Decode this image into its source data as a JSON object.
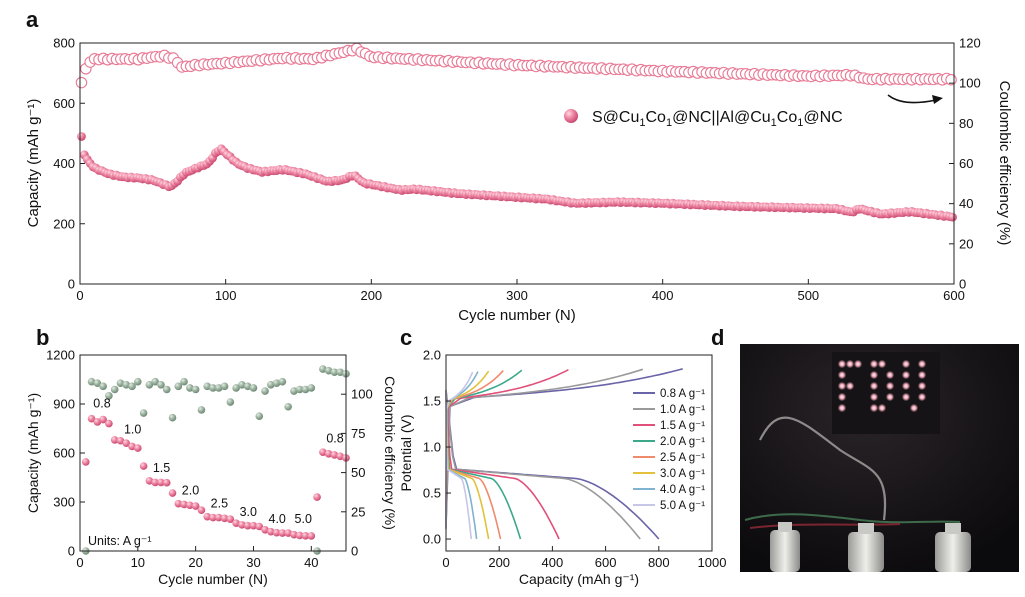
{
  "panel_labels": [
    "a",
    "b",
    "c",
    "d"
  ],
  "chart_data": [
    {
      "panel": "a",
      "type": "scatter",
      "xlabel": "Cycle number (N)",
      "ylabel": "Capacity (mAh g⁻¹)",
      "y2label": "Coulombic efficiency (%)",
      "xlim": [
        0,
        600
      ],
      "ylim": [
        0,
        800
      ],
      "y2lim": [
        0,
        120
      ],
      "xticks": [
        "0",
        "100",
        "200",
        "300",
        "400",
        "500",
        "600"
      ],
      "yticks": [
        "0",
        "200",
        "400",
        "600",
        "800"
      ],
      "y2ticks": [
        "0",
        "20",
        "40",
        "60",
        "80",
        "100",
        "120"
      ],
      "legend": {
        "label": "S@Cu1Co1@NC||Al@Cu1Co1@NC",
        "label_parts": [
          "S@Cu",
          "1",
          "Co",
          "1",
          "@NC||Al@Cu",
          "1",
          "Co",
          "1",
          "@NC"
        ],
        "placement": "center-right"
      },
      "colors": {
        "capacity": "#e87a96",
        "efficiency_edge": "#e87a96",
        "efficiency_fill": "#ffffff"
      },
      "capacity_anchors": [
        [
          1,
          488
        ],
        [
          3,
          430
        ],
        [
          6,
          405
        ],
        [
          10,
          385
        ],
        [
          20,
          365
        ],
        [
          30,
          355
        ],
        [
          40,
          352
        ],
        [
          50,
          345
        ],
        [
          58,
          330
        ],
        [
          62,
          322
        ],
        [
          66,
          338
        ],
        [
          72,
          368
        ],
        [
          80,
          385
        ],
        [
          88,
          400
        ],
        [
          94,
          440
        ],
        [
          97,
          448
        ],
        [
          101,
          430
        ],
        [
          108,
          400
        ],
        [
          115,
          385
        ],
        [
          125,
          372
        ],
        [
          140,
          380
        ],
        [
          155,
          365
        ],
        [
          170,
          340
        ],
        [
          180,
          345
        ],
        [
          188,
          362
        ],
        [
          195,
          335
        ],
        [
          220,
          312
        ],
        [
          230,
          315
        ],
        [
          260,
          300
        ],
        [
          300,
          288
        ],
        [
          320,
          282
        ],
        [
          340,
          268
        ],
        [
          370,
          272
        ],
        [
          400,
          268
        ],
        [
          430,
          262
        ],
        [
          450,
          258
        ],
        [
          500,
          252
        ],
        [
          520,
          250
        ],
        [
          530,
          238
        ],
        [
          535,
          250
        ],
        [
          550,
          232
        ],
        [
          570,
          240
        ],
        [
          600,
          222
        ]
      ],
      "efficiency_anchors": [
        [
          1,
          100
        ],
        [
          3,
          106
        ],
        [
          6,
          110
        ],
        [
          10,
          112
        ],
        [
          40,
          112
        ],
        [
          50,
          113
        ],
        [
          58,
          113.5
        ],
        [
          65,
          112
        ],
        [
          70,
          108
        ],
        [
          80,
          109
        ],
        [
          100,
          110
        ],
        [
          140,
          112.5
        ],
        [
          160,
          112
        ],
        [
          190,
          117
        ],
        [
          200,
          113
        ],
        [
          300,
          109
        ],
        [
          400,
          106
        ],
        [
          500,
          103.5
        ],
        [
          530,
          104
        ],
        [
          540,
          102
        ],
        [
          600,
          102
        ]
      ],
      "annotation": {
        "arrow": "points to right axis"
      }
    },
    {
      "panel": "b",
      "type": "scatter",
      "xlabel": "Cycle number (N)",
      "ylabel": "Capacity (mAh g⁻¹)",
      "y2label": "Coulombic efficiency (%)",
      "xlim": [
        0,
        46
      ],
      "ylim": [
        0,
        1200
      ],
      "y2lim": [
        0,
        125
      ],
      "xticks": [
        "0",
        "10",
        "20",
        "30",
        "40"
      ],
      "yticks": [
        "0",
        "300",
        "600",
        "900",
        "1200"
      ],
      "y2ticks": [
        "0",
        "25",
        "50",
        "75",
        "100"
      ],
      "capacity": [
        [
          1,
          545
        ],
        [
          2,
          810
        ],
        [
          3,
          790
        ],
        [
          4,
          805
        ],
        [
          5,
          780
        ],
        [
          6,
          680
        ],
        [
          7,
          675
        ],
        [
          8,
          660
        ],
        [
          9,
          640
        ],
        [
          10,
          630
        ],
        [
          11,
          520
        ],
        [
          12,
          430
        ],
        [
          13,
          420
        ],
        [
          14,
          420
        ],
        [
          15,
          418
        ],
        [
          16,
          355
        ],
        [
          17,
          290
        ],
        [
          18,
          285
        ],
        [
          19,
          280
        ],
        [
          20,
          275
        ],
        [
          21,
          250
        ],
        [
          22,
          210
        ],
        [
          23,
          205
        ],
        [
          24,
          205
        ],
        [
          25,
          200
        ],
        [
          26,
          195
        ],
        [
          27,
          170
        ],
        [
          28,
          160
        ],
        [
          29,
          155
        ],
        [
          30,
          155
        ],
        [
          31,
          150
        ],
        [
          32,
          130
        ],
        [
          33,
          118
        ],
        [
          34,
          112
        ],
        [
          35,
          110
        ],
        [
          36,
          110
        ],
        [
          37,
          100
        ],
        [
          38,
          95
        ],
        [
          39,
          93
        ],
        [
          40,
          92
        ],
        [
          41,
          330
        ],
        [
          42,
          605
        ],
        [
          43,
          595
        ],
        [
          44,
          588
        ],
        [
          45,
          580
        ],
        [
          46,
          570
        ]
      ],
      "efficiency": [
        [
          1,
          0
        ],
        [
          2,
          108
        ],
        [
          3,
          107
        ],
        [
          4,
          105
        ],
        [
          5,
          99
        ],
        [
          6,
          103
        ],
        [
          7,
          107
        ],
        [
          8,
          106
        ],
        [
          9,
          105
        ],
        [
          10,
          108
        ],
        [
          11,
          88
        ],
        [
          12,
          106
        ],
        [
          13,
          108
        ],
        [
          14,
          106
        ],
        [
          15,
          103
        ],
        [
          16,
          85
        ],
        [
          17,
          105
        ],
        [
          18,
          108
        ],
        [
          19,
          104
        ],
        [
          20,
          103
        ],
        [
          21,
          90
        ],
        [
          22,
          105
        ],
        [
          23,
          104
        ],
        [
          24,
          104
        ],
        [
          25,
          105
        ],
        [
          26,
          95
        ],
        [
          27,
          104
        ],
        [
          28,
          106
        ],
        [
          29,
          105
        ],
        [
          30,
          104
        ],
        [
          31,
          86
        ],
        [
          32,
          102
        ],
        [
          33,
          106
        ],
        [
          34,
          107
        ],
        [
          35,
          108
        ],
        [
          36,
          92
        ],
        [
          37,
          102
        ],
        [
          38,
          103
        ],
        [
          39,
          103
        ],
        [
          40,
          104
        ],
        [
          41,
          0
        ],
        [
          42,
          116
        ],
        [
          43,
          115
        ],
        [
          44,
          114
        ],
        [
          45,
          114
        ],
        [
          46,
          113
        ]
      ],
      "colors": {
        "capacity": "#e87a96",
        "efficiency": "#99b09d"
      },
      "annotations": [
        {
          "text": "0.8",
          "x": 2.3,
          "y": 880
        },
        {
          "text": "1.0",
          "x": 7.6,
          "y": 720
        },
        {
          "text": "1.5",
          "x": 12.6,
          "y": 485
        },
        {
          "text": "2.0",
          "x": 17.6,
          "y": 345
        },
        {
          "text": "2.5",
          "x": 22.6,
          "y": 265
        },
        {
          "text": "3.0",
          "x": 27.6,
          "y": 215
        },
        {
          "text": "4.0",
          "x": 32.6,
          "y": 170
        },
        {
          "text": "5.0",
          "x": 37.1,
          "y": 170
        },
        {
          "text": "0.8",
          "x": 42.6,
          "y": 665
        }
      ],
      "units_note": "Units: A g⁻¹"
    },
    {
      "panel": "c",
      "type": "line",
      "xlabel": "Capacity (mAh g⁻¹)",
      "ylabel": "Potential (V)",
      "xlim": [
        0,
        1000
      ],
      "ylim": [
        -0.13,
        2.0
      ],
      "xticks": [
        "0",
        "200",
        "400",
        "600",
        "800",
        "1000"
      ],
      "yticks": [
        "0.0",
        "0.5",
        "1.0",
        "1.5",
        "2.0"
      ],
      "series": [
        {
          "name": "0.8 A g⁻¹",
          "color": "#6a64a8",
          "discharge_capacity": 800,
          "charge_capacity": 890
        },
        {
          "name": "1.0 A g⁻¹",
          "color": "#9a9a9a",
          "discharge_capacity": 730,
          "charge_capacity": 740
        },
        {
          "name": "1.5 A g⁻¹",
          "color": "#e0507a",
          "discharge_capacity": 425,
          "charge_capacity": 460
        },
        {
          "name": "2.0 A g⁻¹",
          "color": "#3aa98a",
          "discharge_capacity": 280,
          "charge_capacity": 285
        },
        {
          "name": "2.5 A g⁻¹",
          "color": "#f08a6c",
          "discharge_capacity": 205,
          "charge_capacity": 215
        },
        {
          "name": "3.0 A g⁻¹",
          "color": "#e2c23a",
          "discharge_capacity": 160,
          "charge_capacity": 160
        },
        {
          "name": "4.0 A g⁻¹",
          "color": "#7fb3cf",
          "discharge_capacity": 115,
          "charge_capacity": 120
        },
        {
          "name": "5.0 A g⁻¹",
          "color": "#c6c6e6",
          "discharge_capacity": 95,
          "charge_capacity": 100
        }
      ]
    }
  ],
  "photo": {
    "panel": "d",
    "lettering": "FDU"
  }
}
